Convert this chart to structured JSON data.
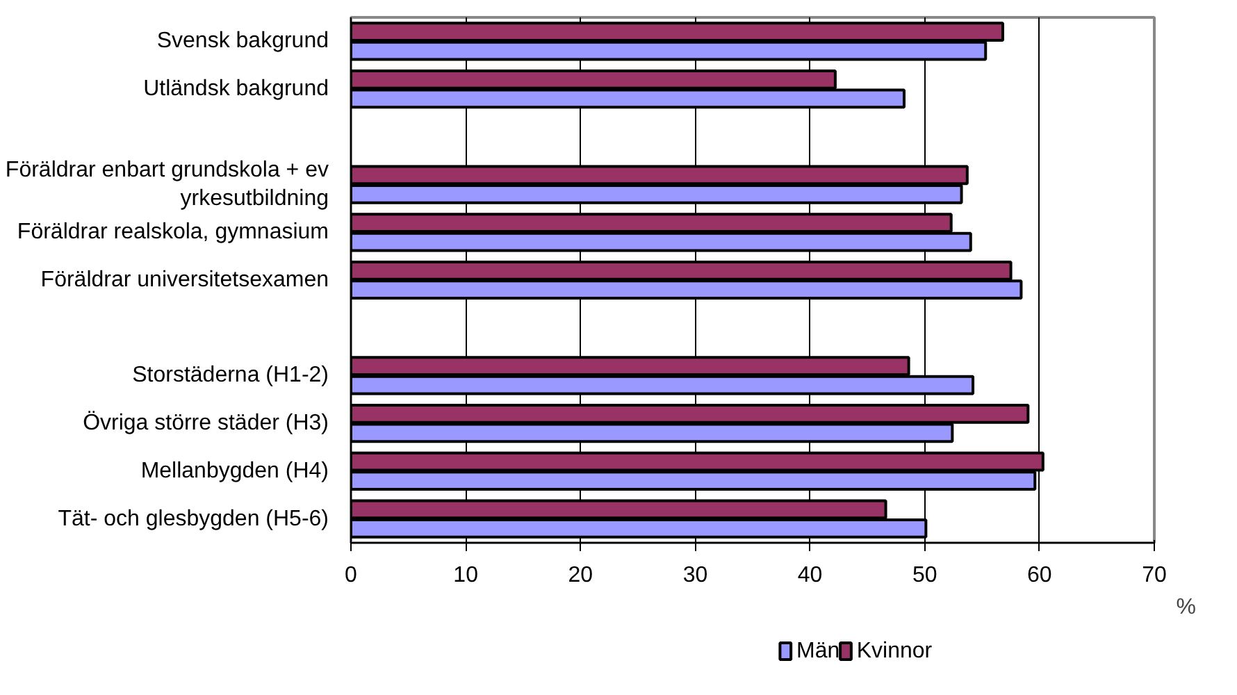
{
  "chart_data": {
    "type": "bar",
    "orientation": "horizontal",
    "xlabel": "%",
    "categories": [
      "Svensk bakgrund",
      "Utländsk bakgrund",
      null,
      "Föräldrar enbart grundskola + ev yrkesutbildning",
      "Föräldrar realskola, gymnasium",
      "Föräldrar universitetsexamen",
      null,
      "Storstäderna (H1-2)",
      "Övriga större städer (H3)",
      "Mellanbygden (H4)",
      "Tät- och glesbygden (H5-6)"
    ],
    "series": [
      {
        "name": "Män",
        "color": "#9999ff",
        "values": [
          55.3,
          48.2,
          null,
          53.2,
          54.0,
          58.4,
          null,
          54.2,
          52.4,
          59.6,
          50.1
        ]
      },
      {
        "name": "Kvinnor",
        "color": "#993366",
        "values": [
          56.8,
          42.2,
          null,
          53.7,
          52.3,
          57.5,
          null,
          48.6,
          59.0,
          60.3,
          46.6
        ]
      }
    ],
    "xlim": [
      0,
      70
    ],
    "xticks": [
      0,
      10,
      20,
      30,
      40,
      50,
      60,
      70
    ],
    "grid": "x",
    "legend": "bottom"
  }
}
